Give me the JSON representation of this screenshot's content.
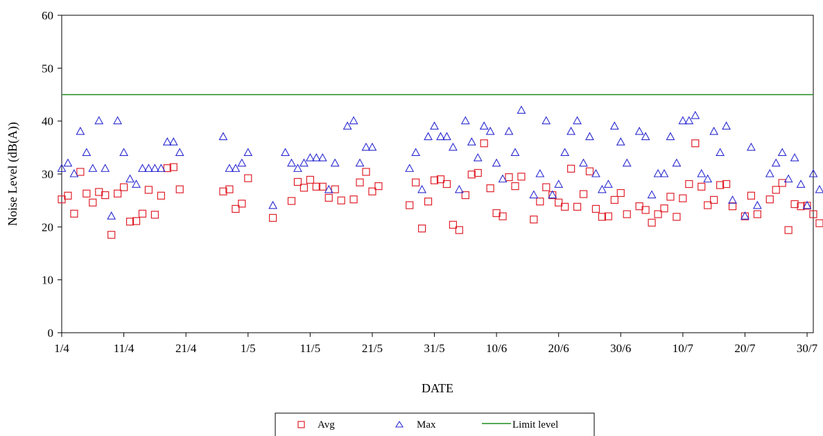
{
  "chart_data": {
    "type": "scatter",
    "title": "",
    "xlabel": "DATE",
    "ylabel": "Noise Level (dB(A))",
    "ylim": [
      0,
      60
    ],
    "xlim": [
      "2000-04-01",
      "2000-07-31"
    ],
    "yticks": [
      "0",
      "10",
      "20",
      "30",
      "40",
      "50",
      "60"
    ],
    "xticks": [
      {
        "date": "2000-04-01",
        "label": "1/4"
      },
      {
        "date": "2000-04-11",
        "label": "11/4"
      },
      {
        "date": "2000-04-21",
        "label": "21/4"
      },
      {
        "date": "2000-05-01",
        "label": "1/5"
      },
      {
        "date": "2000-05-11",
        "label": "11/5"
      },
      {
        "date": "2000-05-21",
        "label": "21/5"
      },
      {
        "date": "2000-05-31",
        "label": "31/5"
      },
      {
        "date": "2000-06-10",
        "label": "10/6"
      },
      {
        "date": "2000-06-20",
        "label": "20/6"
      },
      {
        "date": "2000-06-30",
        "label": "30/6"
      },
      {
        "date": "2000-07-10",
        "label": "10/7"
      },
      {
        "date": "2000-07-20",
        "label": "20/7"
      },
      {
        "date": "2000-07-30",
        "label": "30/7"
      }
    ],
    "grid": false,
    "legend_position": "bottom",
    "series": [
      {
        "name": "Avg",
        "marker": "square",
        "color": "#e0202a",
        "points": [
          [
            "2000-04-01",
            25.2
          ],
          [
            "2000-04-02",
            25.9
          ],
          [
            "2000-04-03",
            22.5
          ],
          [
            "2000-04-04",
            30.4
          ],
          [
            "2000-04-05",
            26.3
          ],
          [
            "2000-04-06",
            24.6
          ],
          [
            "2000-04-07",
            26.6
          ],
          [
            "2000-04-08",
            26.0
          ],
          [
            "2000-04-09",
            18.5
          ],
          [
            "2000-04-10",
            26.3
          ],
          [
            "2000-04-11",
            27.5
          ],
          [
            "2000-04-12",
            21.0
          ],
          [
            "2000-04-13",
            21.1
          ],
          [
            "2000-04-14",
            22.5
          ],
          [
            "2000-04-15",
            27.0
          ],
          [
            "2000-04-16",
            22.3
          ],
          [
            "2000-04-17",
            25.9
          ],
          [
            "2000-04-18",
            31.1
          ],
          [
            "2000-04-19",
            31.3
          ],
          [
            "2000-04-20",
            27.1
          ],
          [
            "2000-04-27",
            26.7
          ],
          [
            "2000-04-28",
            27.1
          ],
          [
            "2000-04-29",
            23.4
          ],
          [
            "2000-04-30",
            24.4
          ],
          [
            "2000-05-01",
            29.2
          ],
          [
            "2000-05-05",
            21.7
          ],
          [
            "2000-05-08",
            24.9
          ],
          [
            "2000-05-09",
            28.5
          ],
          [
            "2000-05-10",
            27.4
          ],
          [
            "2000-05-11",
            28.9
          ],
          [
            "2000-05-12",
            27.6
          ],
          [
            "2000-05-13",
            27.6
          ],
          [
            "2000-05-14",
            25.5
          ],
          [
            "2000-05-15",
            27.1
          ],
          [
            "2000-05-16",
            25.0
          ],
          [
            "2000-05-18",
            25.2
          ],
          [
            "2000-05-19",
            28.4
          ],
          [
            "2000-05-20",
            30.4
          ],
          [
            "2000-05-21",
            26.7
          ],
          [
            "2000-05-22",
            27.7
          ],
          [
            "2000-05-27",
            24.1
          ],
          [
            "2000-05-28",
            28.4
          ],
          [
            "2000-05-29",
            19.7
          ],
          [
            "2000-05-30",
            24.8
          ],
          [
            "2000-05-31",
            28.8
          ],
          [
            "2000-06-01",
            29.0
          ],
          [
            "2000-06-02",
            28.1
          ],
          [
            "2000-06-03",
            20.4
          ],
          [
            "2000-06-04",
            19.4
          ],
          [
            "2000-06-05",
            26.0
          ],
          [
            "2000-06-06",
            29.9
          ],
          [
            "2000-06-07",
            30.2
          ],
          [
            "2000-06-08",
            35.8
          ],
          [
            "2000-06-09",
            27.3
          ],
          [
            "2000-06-10",
            22.6
          ],
          [
            "2000-06-11",
            22.0
          ],
          [
            "2000-06-12",
            29.4
          ],
          [
            "2000-06-13",
            27.7
          ],
          [
            "2000-06-14",
            29.5
          ],
          [
            "2000-06-16",
            21.4
          ],
          [
            "2000-06-17",
            24.8
          ],
          [
            "2000-06-18",
            27.5
          ],
          [
            "2000-06-19",
            26.0
          ],
          [
            "2000-06-20",
            24.6
          ],
          [
            "2000-06-21",
            23.8
          ],
          [
            "2000-06-22",
            31.0
          ],
          [
            "2000-06-23",
            23.8
          ],
          [
            "2000-06-24",
            26.2
          ],
          [
            "2000-06-25",
            30.5
          ],
          [
            "2000-06-26",
            23.4
          ],
          [
            "2000-06-27",
            21.9
          ],
          [
            "2000-06-28",
            22.0
          ],
          [
            "2000-06-29",
            25.1
          ],
          [
            "2000-06-30",
            26.4
          ],
          [
            "2000-07-01",
            22.4
          ],
          [
            "2000-07-03",
            23.9
          ],
          [
            "2000-07-04",
            23.2
          ],
          [
            "2000-07-05",
            20.8
          ],
          [
            "2000-07-06",
            22.4
          ],
          [
            "2000-07-07",
            23.5
          ],
          [
            "2000-07-08",
            25.7
          ],
          [
            "2000-07-09",
            21.9
          ],
          [
            "2000-07-10",
            25.4
          ],
          [
            "2000-07-11",
            28.1
          ],
          [
            "2000-07-12",
            35.8
          ],
          [
            "2000-07-13",
            27.6
          ],
          [
            "2000-07-14",
            24.1
          ],
          [
            "2000-07-15",
            25.1
          ],
          [
            "2000-07-16",
            27.9
          ],
          [
            "2000-07-17",
            28.1
          ],
          [
            "2000-07-18",
            23.9
          ],
          [
            "2000-07-20",
            22.0
          ],
          [
            "2000-07-21",
            25.9
          ],
          [
            "2000-07-22",
            22.4
          ],
          [
            "2000-07-24",
            25.2
          ],
          [
            "2000-07-25",
            27.0
          ],
          [
            "2000-07-26",
            28.3
          ],
          [
            "2000-07-27",
            19.4
          ],
          [
            "2000-07-28",
            24.3
          ],
          [
            "2000-07-29",
            23.9
          ],
          [
            "2000-07-30",
            24.0
          ],
          [
            "2000-07-31",
            22.4
          ],
          [
            "2000-08-01",
            20.7
          ]
        ]
      },
      {
        "name": "Max",
        "marker": "triangle",
        "color": "#2a2ad0",
        "points": [
          [
            "2000-04-01",
            31
          ],
          [
            "2000-04-02",
            32
          ],
          [
            "2000-04-03",
            30
          ],
          [
            "2000-04-04",
            38
          ],
          [
            "2000-04-05",
            34
          ],
          [
            "2000-04-06",
            31
          ],
          [
            "2000-04-07",
            40
          ],
          [
            "2000-04-08",
            31
          ],
          [
            "2000-04-09",
            22
          ],
          [
            "2000-04-10",
            40
          ],
          [
            "2000-04-11",
            34
          ],
          [
            "2000-04-12",
            29
          ],
          [
            "2000-04-13",
            28
          ],
          [
            "2000-04-14",
            31
          ],
          [
            "2000-04-15",
            31
          ],
          [
            "2000-04-16",
            31
          ],
          [
            "2000-04-17",
            31
          ],
          [
            "2000-04-18",
            36
          ],
          [
            "2000-04-19",
            36
          ],
          [
            "2000-04-20",
            34
          ],
          [
            "2000-04-27",
            37
          ],
          [
            "2000-04-28",
            31
          ],
          [
            "2000-04-29",
            31
          ],
          [
            "2000-04-30",
            32
          ],
          [
            "2000-05-01",
            34
          ],
          [
            "2000-05-05",
            24
          ],
          [
            "2000-05-07",
            34
          ],
          [
            "2000-05-08",
            32
          ],
          [
            "2000-05-09",
            31
          ],
          [
            "2000-05-10",
            32
          ],
          [
            "2000-05-11",
            33
          ],
          [
            "2000-05-12",
            33
          ],
          [
            "2000-05-13",
            33
          ],
          [
            "2000-05-14",
            27
          ],
          [
            "2000-05-15",
            32
          ],
          [
            "2000-05-17",
            39
          ],
          [
            "2000-05-18",
            40
          ],
          [
            "2000-05-19",
            32
          ],
          [
            "2000-05-20",
            35
          ],
          [
            "2000-05-21",
            35
          ],
          [
            "2000-05-27",
            31
          ],
          [
            "2000-05-28",
            34
          ],
          [
            "2000-05-29",
            27
          ],
          [
            "2000-05-30",
            37
          ],
          [
            "2000-05-31",
            39
          ],
          [
            "2000-06-01",
            37
          ],
          [
            "2000-06-02",
            37
          ],
          [
            "2000-06-03",
            35
          ],
          [
            "2000-06-04",
            27
          ],
          [
            "2000-06-05",
            40
          ],
          [
            "2000-06-06",
            36
          ],
          [
            "2000-06-07",
            33
          ],
          [
            "2000-06-08",
            39
          ],
          [
            "2000-06-09",
            38
          ],
          [
            "2000-06-10",
            32
          ],
          [
            "2000-06-11",
            29
          ],
          [
            "2000-06-12",
            38
          ],
          [
            "2000-06-13",
            34
          ],
          [
            "2000-06-14",
            42
          ],
          [
            "2000-06-16",
            26
          ],
          [
            "2000-06-17",
            30
          ],
          [
            "2000-06-18",
            40
          ],
          [
            "2000-06-19",
            26
          ],
          [
            "2000-06-20",
            28
          ],
          [
            "2000-06-21",
            34
          ],
          [
            "2000-06-22",
            38
          ],
          [
            "2000-06-23",
            40
          ],
          [
            "2000-06-24",
            32
          ],
          [
            "2000-06-25",
            37
          ],
          [
            "2000-06-26",
            30
          ],
          [
            "2000-06-27",
            27
          ],
          [
            "2000-06-28",
            28
          ],
          [
            "2000-06-29",
            39
          ],
          [
            "2000-06-30",
            36
          ],
          [
            "2000-07-01",
            32
          ],
          [
            "2000-07-03",
            38
          ],
          [
            "2000-07-04",
            37
          ],
          [
            "2000-07-05",
            26
          ],
          [
            "2000-07-06",
            30
          ],
          [
            "2000-07-07",
            30
          ],
          [
            "2000-07-08",
            37
          ],
          [
            "2000-07-09",
            32
          ],
          [
            "2000-07-10",
            40
          ],
          [
            "2000-07-11",
            40
          ],
          [
            "2000-07-12",
            41
          ],
          [
            "2000-07-13",
            30
          ],
          [
            "2000-07-14",
            29
          ],
          [
            "2000-07-15",
            38
          ],
          [
            "2000-07-16",
            34
          ],
          [
            "2000-07-17",
            39
          ],
          [
            "2000-07-18",
            25
          ],
          [
            "2000-07-20",
            22
          ],
          [
            "2000-07-21",
            35
          ],
          [
            "2000-07-22",
            24
          ],
          [
            "2000-07-24",
            30
          ],
          [
            "2000-07-25",
            32
          ],
          [
            "2000-07-26",
            34
          ],
          [
            "2000-07-27",
            29
          ],
          [
            "2000-07-28",
            33
          ],
          [
            "2000-07-29",
            28
          ],
          [
            "2000-07-30",
            24
          ],
          [
            "2000-07-31",
            30
          ],
          [
            "2000-08-01",
            27
          ]
        ]
      },
      {
        "name": "Limit level",
        "marker": "line",
        "color": "#1f8a1f",
        "value": 45
      }
    ]
  }
}
